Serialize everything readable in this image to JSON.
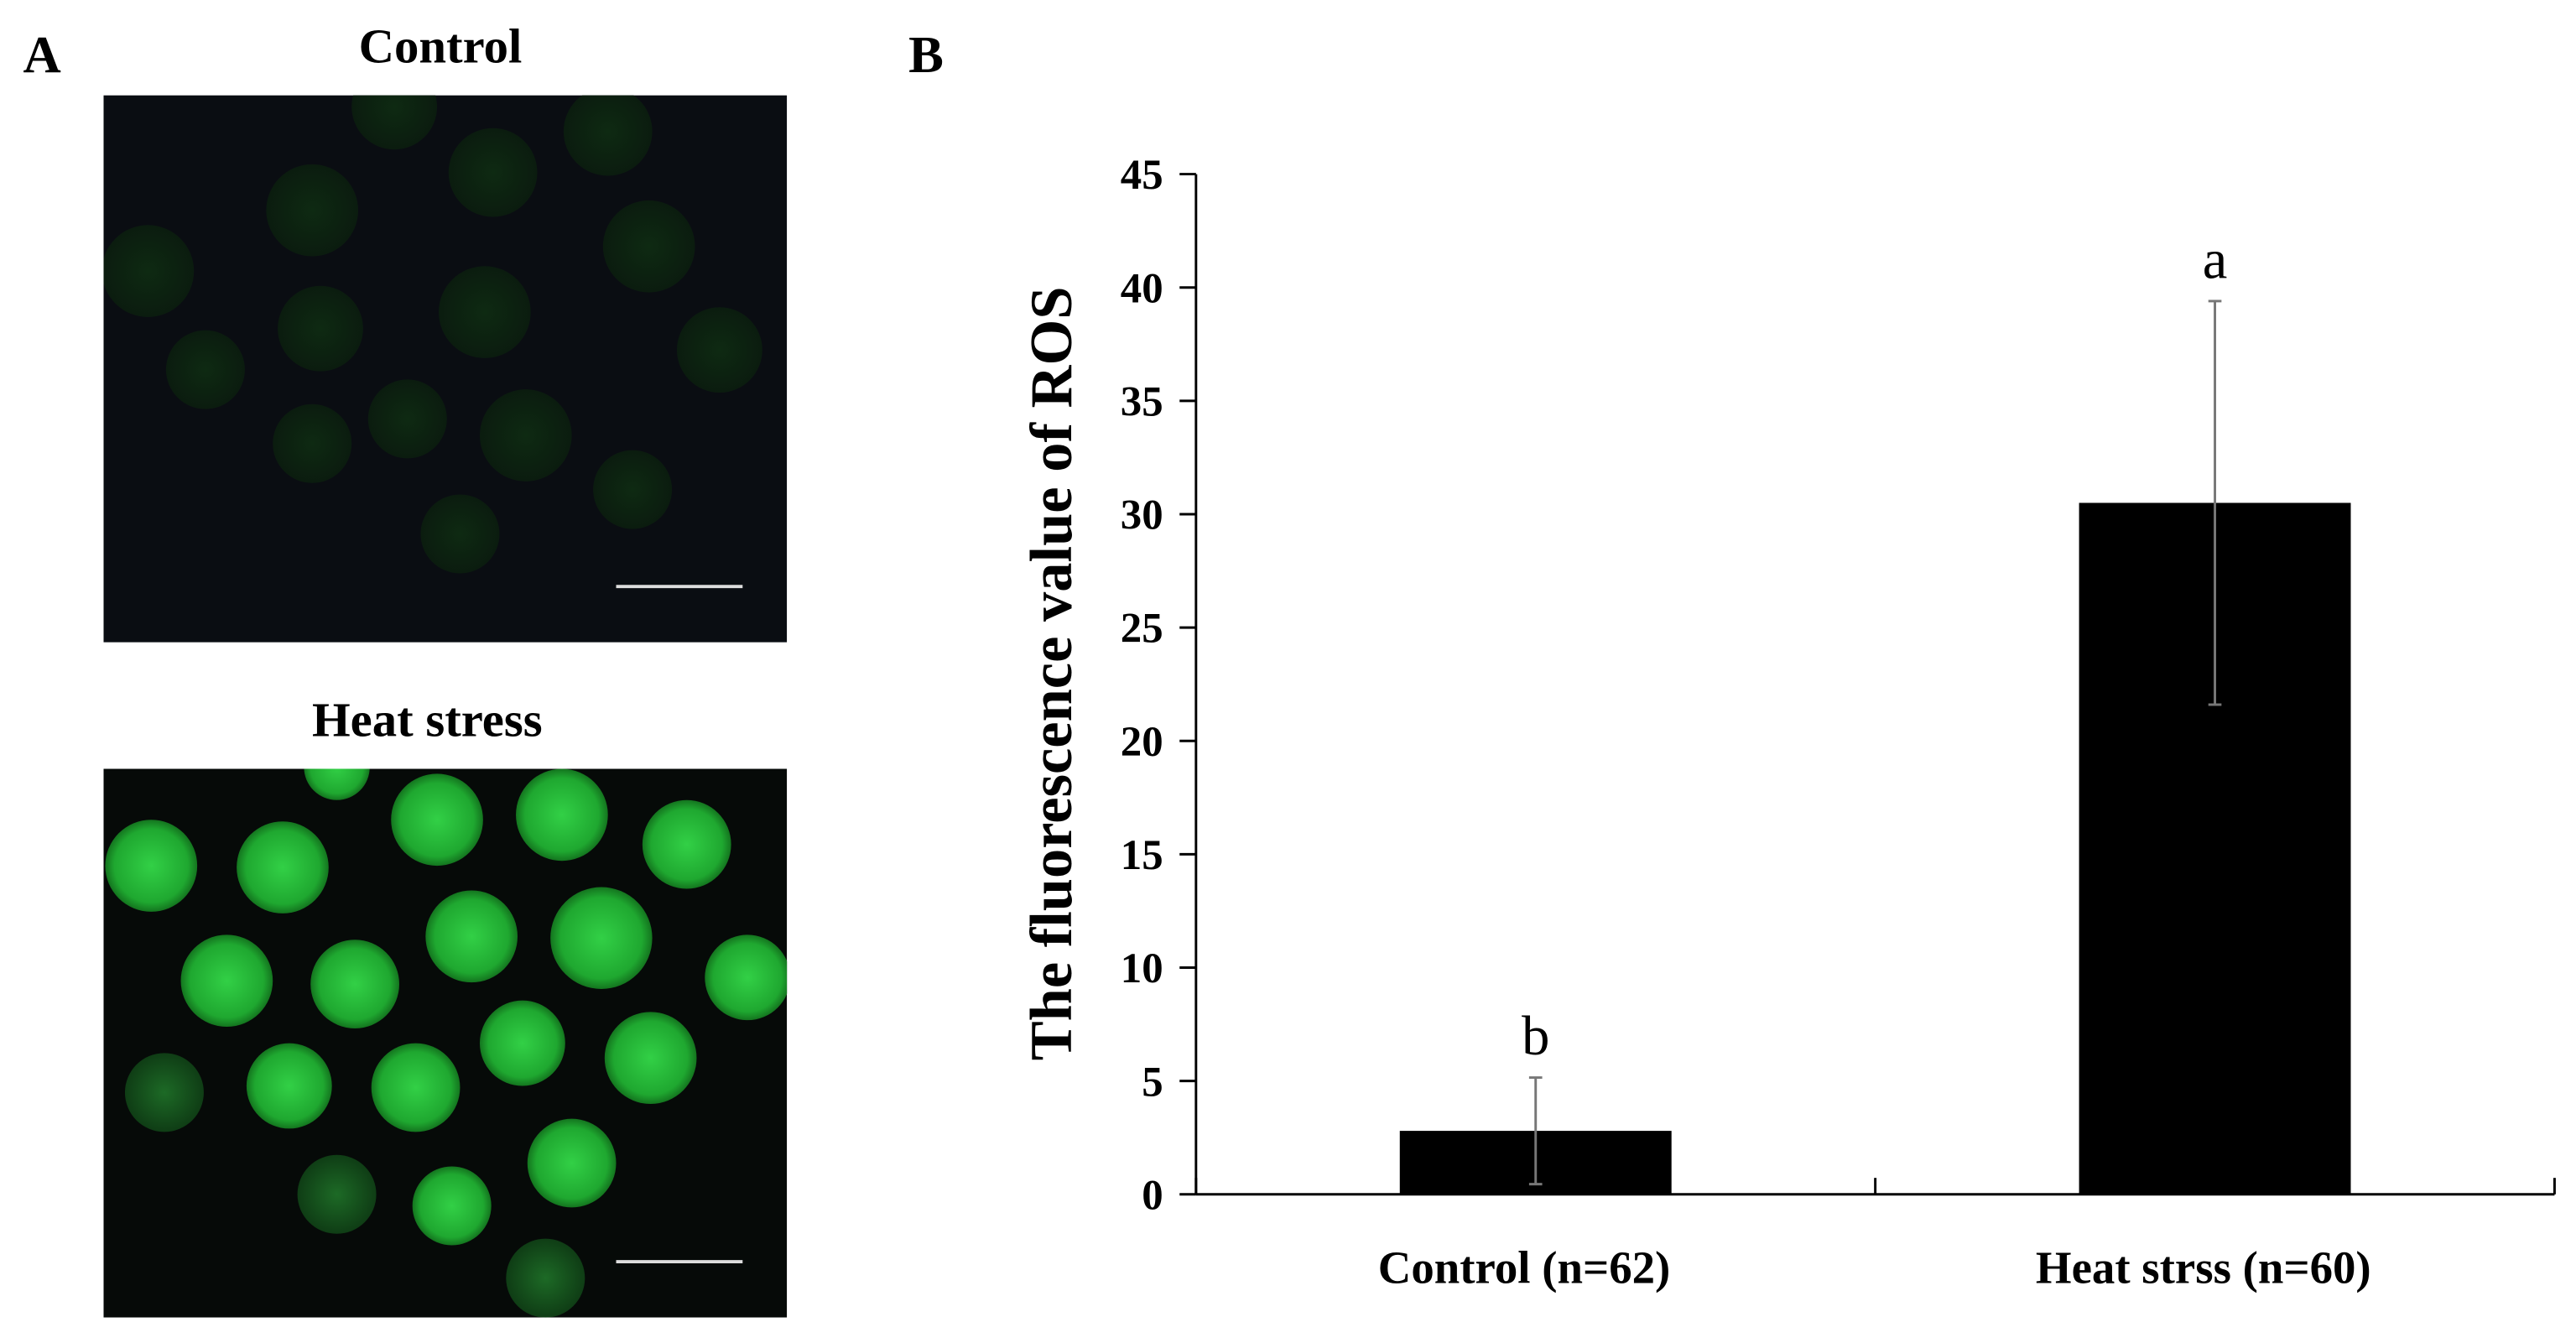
{
  "figure": {
    "panel_a_label": "A",
    "panel_b_label": "B",
    "image_titles": [
      "Control",
      "Heat stress"
    ]
  },
  "chart_data": {
    "type": "bar",
    "categories": [
      "Control (n=62)",
      "Heat strss (n=60)"
    ],
    "values": [
      2.8,
      30.5
    ],
    "errors": [
      2.35,
      8.9
    ],
    "significance_labels": [
      "b",
      "a"
    ],
    "color": "#000000",
    "y_label": "The fluorescence value of ROS",
    "ylim": [
      0,
      45
    ],
    "yticks": [
      0,
      5,
      10,
      15,
      20,
      25,
      30,
      35,
      40,
      45
    ],
    "grid": false
  }
}
